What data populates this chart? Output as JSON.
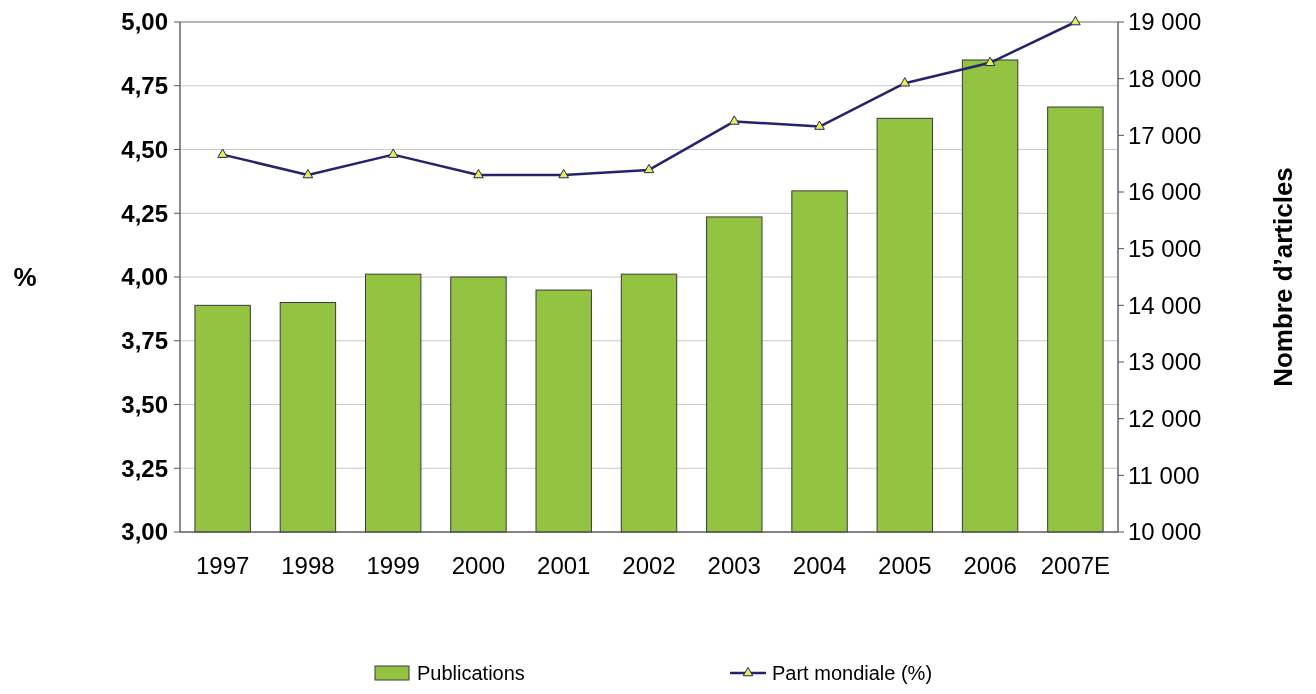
{
  "chart_data": {
    "type": "bar",
    "categories": [
      "1997",
      "1998",
      "1999",
      "2000",
      "2001",
      "2002",
      "2003",
      "2004",
      "2005",
      "2006",
      "2007E"
    ],
    "ylabel": "%",
    "y2label": "Nombre d’articles",
    "ylim": [
      3,
      5
    ],
    "yticks": [
      {
        "value": 3,
        "label": "3,00"
      },
      {
        "value": 3.25,
        "label": "3,25"
      },
      {
        "value": 3.5,
        "label": "3,50"
      },
      {
        "value": 3.75,
        "label": "3,75"
      },
      {
        "value": 4,
        "label": "4,00"
      },
      {
        "value": 4.25,
        "label": "4,25"
      },
      {
        "value": 4.5,
        "label": "4,50"
      },
      {
        "value": 4.75,
        "label": "4,75"
      },
      {
        "value": 5,
        "label": "5,00"
      }
    ],
    "y2lim": [
      10000,
      19000
    ],
    "y2ticks": [
      {
        "value": 10000,
        "label": "10 000"
      },
      {
        "value": 11000,
        "label": "11 000"
      },
      {
        "value": 12000,
        "label": "12 000"
      },
      {
        "value": 13000,
        "label": "13 000"
      },
      {
        "value": 14000,
        "label": "14 000"
      },
      {
        "value": 15000,
        "label": "15 000"
      },
      {
        "value": 16000,
        "label": "16 000"
      },
      {
        "value": 17000,
        "label": "17 000"
      },
      {
        "value": 18000,
        "label": "18 000"
      },
      {
        "value": 19000,
        "label": "19 000"
      }
    ],
    "grid": "y",
    "legend": "bottom",
    "series": [
      {
        "name": "Publications",
        "axis": "y2",
        "color": "#92c341",
        "values": [
          14000,
          14050,
          14550,
          14500,
          14270,
          14550,
          15560,
          16020,
          17300,
          18330,
          17500
        ]
      },
      {
        "name": "Part mondiale (%)",
        "type": "line",
        "color": "#25226e",
        "marker": "triangle",
        "values": [
          4.48,
          4.4,
          4.48,
          4.4,
          4.4,
          4.42,
          4.61,
          4.59,
          4.76,
          4.84,
          5.0
        ]
      }
    ]
  }
}
